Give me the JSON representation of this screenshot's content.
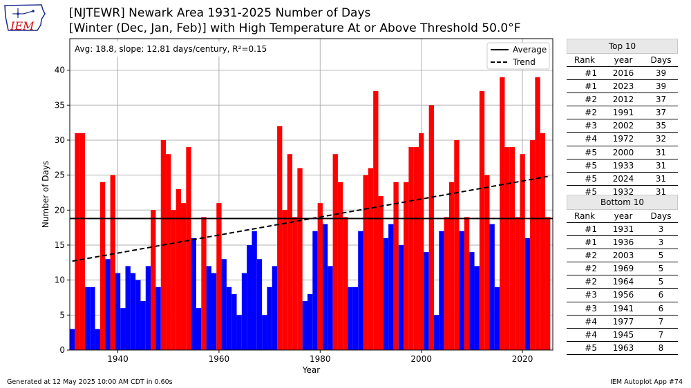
{
  "header": {
    "logo_text": "IEM",
    "title_line1": "[NJTEWR] Newark Area 1931-2025 Number of Days",
    "title_line2": "[Winter (Dec, Jan, Feb)] with High Temperature At or Above Threshold 50.0°F"
  },
  "chart_data": {
    "type": "bar",
    "xlabel": "Year",
    "ylabel": "Number of Days",
    "xlim": [
      1930.5,
      2026
    ],
    "ylim": [
      0,
      44.5
    ],
    "xticks": [
      1940,
      1960,
      1980,
      2000,
      2020
    ],
    "yticks": [
      0,
      5,
      10,
      15,
      20,
      25,
      30,
      35,
      40
    ],
    "grid": true,
    "average": 18.8,
    "trend": {
      "start_year": 1931,
      "start_value": 12.7,
      "end_year": 2025,
      "end_value": 24.8
    },
    "stats_text": "Avg: 18.8, slope: 12.81 days/century, R²=0.15",
    "legend": {
      "position": "top-right",
      "entries": [
        "Average",
        "Trend"
      ]
    },
    "colors": {
      "above": "#ff0000",
      "below": "#0000ff",
      "average": "#000000",
      "trend": "#000000"
    },
    "start_year": 1931,
    "years": [
      1931,
      1932,
      1933,
      1934,
      1935,
      1936,
      1937,
      1938,
      1939,
      1940,
      1941,
      1942,
      1943,
      1944,
      1945,
      1946,
      1947,
      1948,
      1949,
      1950,
      1951,
      1952,
      1953,
      1954,
      1955,
      1956,
      1957,
      1958,
      1959,
      1960,
      1961,
      1962,
      1963,
      1964,
      1965,
      1966,
      1967,
      1968,
      1969,
      1970,
      1971,
      1972,
      1973,
      1974,
      1975,
      1976,
      1977,
      1978,
      1979,
      1980,
      1981,
      1982,
      1983,
      1984,
      1985,
      1986,
      1987,
      1988,
      1989,
      1990,
      1991,
      1992,
      1993,
      1994,
      1995,
      1996,
      1997,
      1998,
      1999,
      2000,
      2001,
      2002,
      2003,
      2004,
      2005,
      2006,
      2007,
      2008,
      2009,
      2010,
      2011,
      2012,
      2013,
      2014,
      2015,
      2016,
      2017,
      2018,
      2019,
      2020,
      2021,
      2022,
      2023,
      2024,
      2025
    ],
    "values": [
      3,
      31,
      31,
      9,
      9,
      3,
      24,
      13,
      25,
      11,
      6,
      12,
      11,
      10,
      7,
      12,
      20,
      9,
      30,
      28,
      20,
      23,
      21,
      29,
      16,
      6,
      19,
      12,
      11,
      21,
      13,
      9,
      8,
      5,
      11,
      15,
      17,
      13,
      5,
      9,
      12,
      32,
      20,
      28,
      19,
      26,
      7,
      8,
      17,
      21,
      18,
      12,
      28,
      24,
      19,
      9,
      9,
      17,
      25,
      26,
      37,
      22,
      16,
      18,
      24,
      15,
      24,
      29,
      29,
      31,
      14,
      35,
      5,
      17,
      19,
      24,
      30,
      17,
      19,
      14,
      12,
      37,
      25,
      18,
      9,
      39,
      29,
      29,
      19,
      28,
      16,
      30,
      39,
      31,
      19
    ]
  },
  "top10": {
    "title": "Top 10",
    "columns": [
      "Rank",
      "year",
      "Days"
    ],
    "rows": [
      [
        "#1",
        "2016",
        "39"
      ],
      [
        "#1",
        "2023",
        "39"
      ],
      [
        "#2",
        "2012",
        "37"
      ],
      [
        "#2",
        "1991",
        "37"
      ],
      [
        "#3",
        "2002",
        "35"
      ],
      [
        "#4",
        "1972",
        "32"
      ],
      [
        "#5",
        "2000",
        "31"
      ],
      [
        "#5",
        "1933",
        "31"
      ],
      [
        "#5",
        "2024",
        "31"
      ],
      [
        "#5",
        "1932",
        "31"
      ]
    ]
  },
  "bottom10": {
    "title": "Bottom 10",
    "columns": [
      "Rank",
      "year",
      "Days"
    ],
    "rows": [
      [
        "#1",
        "1931",
        "3"
      ],
      [
        "#1",
        "1936",
        "3"
      ],
      [
        "#2",
        "2003",
        "5"
      ],
      [
        "#2",
        "1969",
        "5"
      ],
      [
        "#2",
        "1964",
        "5"
      ],
      [
        "#3",
        "1956",
        "6"
      ],
      [
        "#3",
        "1941",
        "6"
      ],
      [
        "#4",
        "1977",
        "7"
      ],
      [
        "#4",
        "1945",
        "7"
      ],
      [
        "#5",
        "1963",
        "8"
      ]
    ]
  },
  "footer": {
    "left": "Generated at 12 May 2025 10:00 AM CDT in 0.60s",
    "right": "IEM Autoplot App #74"
  }
}
